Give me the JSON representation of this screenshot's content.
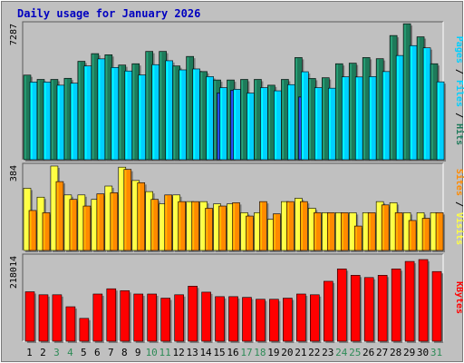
{
  "title": "Daily usage for January 2026",
  "colors": {
    "background": "#c0c0c0",
    "panel": "#c0c0c0",
    "title_text": "#0000c0",
    "hits": "#1e7a5a",
    "files": "#00d0ff",
    "pages": "#1f3fd0",
    "visits": "#ffff40",
    "sites": "#ff8a00",
    "kbytes": "#ff0000",
    "weekend_day": "#2e8b57",
    "weekday_day": "#000000"
  },
  "chart_data": [
    {
      "type": "bar",
      "panel": "hits-files-pages",
      "ymax_label": "7287",
      "ymax": 7287,
      "legend": [
        "Pages",
        "Files",
        "Hits"
      ],
      "x": [
        "1",
        "2",
        "3",
        "4",
        "5",
        "6",
        "7",
        "8",
        "9",
        "10",
        "11",
        "12",
        "13",
        "14",
        "15",
        "16",
        "17",
        "18",
        "19",
        "20",
        "21",
        "22",
        "23",
        "24",
        "25",
        "26",
        "27",
        "28",
        "29",
        "30",
        "31"
      ],
      "weekend": [
        3,
        4,
        10,
        11,
        17,
        18,
        24,
        25,
        31
      ],
      "series": [
        {
          "name": "Hits",
          "values": [
            4530,
            4300,
            4300,
            4360,
            5270,
            5680,
            5620,
            5070,
            5140,
            5800,
            5800,
            5020,
            5530,
            4720,
            4270,
            4270,
            4300,
            4300,
            3990,
            4300,
            5470,
            4350,
            4390,
            5140,
            5170,
            5470,
            5410,
            6650,
            7280,
            6580,
            5140
          ]
        },
        {
          "name": "Files",
          "values": [
            4160,
            4160,
            3990,
            4100,
            5020,
            5400,
            4940,
            4750,
            4540,
            5090,
            5300,
            4810,
            4860,
            4450,
            3860,
            3770,
            3570,
            3860,
            3690,
            4020,
            4710,
            3860,
            3830,
            4440,
            4430,
            4450,
            4720,
            5580,
            6110,
            5990,
            4170
          ]
        },
        {
          "name": "Pages",
          "values": [
            0,
            0,
            0,
            0,
            0,
            0,
            0,
            0,
            0,
            0,
            0,
            0,
            0,
            0,
            3580,
            3720,
            0,
            0,
            0,
            0,
            3360,
            0,
            0,
            0,
            0,
            0,
            0,
            0,
            0,
            0,
            0
          ]
        }
      ]
    },
    {
      "type": "bar",
      "panel": "sites-visits",
      "ymax_label": "384",
      "ymax": 384,
      "legend": [
        "Sites",
        "Visits"
      ],
      "x": [
        "1",
        "2",
        "3",
        "4",
        "5",
        "6",
        "7",
        "8",
        "9",
        "10",
        "11",
        "12",
        "13",
        "14",
        "15",
        "16",
        "17",
        "18",
        "19",
        "20",
        "21",
        "22",
        "23",
        "24",
        "25",
        "26",
        "27",
        "28",
        "29",
        "30",
        "31"
      ],
      "series": [
        {
          "name": "Visits",
          "values": [
            280,
            240,
            380,
            250,
            250,
            230,
            290,
            375,
            315,
            265,
            210,
            250,
            220,
            220,
            210,
            210,
            170,
            170,
            140,
            220,
            235,
            190,
            170,
            170,
            170,
            170,
            220,
            215,
            170,
            170,
            170
          ]
        },
        {
          "name": "Sites",
          "values": [
            180,
            170,
            310,
            230,
            200,
            255,
            260,
            365,
            305,
            230,
            250,
            220,
            220,
            190,
            200,
            215,
            155,
            220,
            165,
            220,
            220,
            170,
            170,
            170,
            110,
            170,
            205,
            170,
            135,
            145,
            170
          ]
        }
      ]
    },
    {
      "type": "bar",
      "panel": "kbytes",
      "ymax_label": "218014",
      "ymax": 218014,
      "legend": [
        "KBytes"
      ],
      "x": [
        "1",
        "2",
        "3",
        "4",
        "5",
        "6",
        "7",
        "8",
        "9",
        "10",
        "11",
        "12",
        "13",
        "14",
        "15",
        "16",
        "17",
        "18",
        "19",
        "20",
        "21",
        "22",
        "23",
        "24",
        "25",
        "26",
        "27",
        "28",
        "29",
        "30",
        "31"
      ],
      "series": [
        {
          "name": "KBytes",
          "values": [
            132000,
            124000,
            124000,
            92000,
            61000,
            126000,
            140000,
            135000,
            126000,
            126000,
            115000,
            124000,
            147000,
            131000,
            119000,
            119000,
            117000,
            112000,
            112000,
            115000,
            126000,
            124000,
            160000,
            193000,
            176000,
            170000,
            176000,
            193000,
            213000,
            218000,
            186000
          ]
        }
      ]
    }
  ]
}
